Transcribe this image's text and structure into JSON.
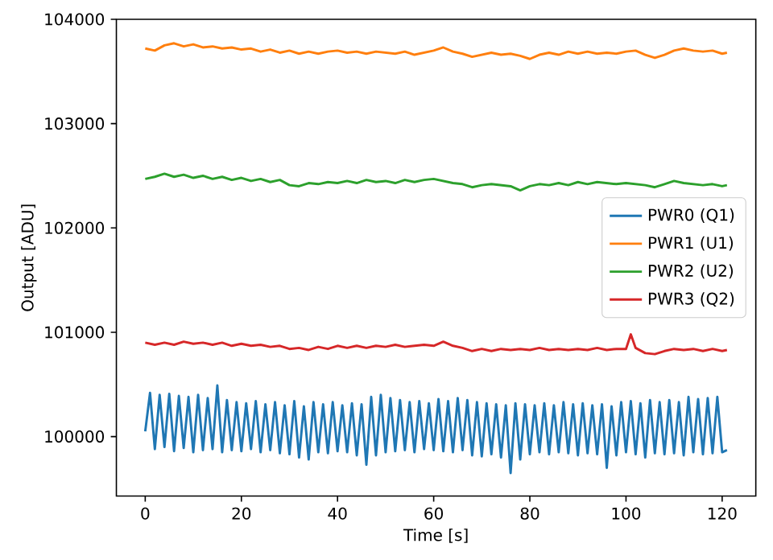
{
  "chart_data": {
    "type": "line",
    "xlabel": "Time [s]",
    "ylabel": "Output [ADU]",
    "xlim": [
      -6,
      127
    ],
    "ylim": [
      99430,
      104000
    ],
    "xticks": [
      0,
      20,
      40,
      60,
      80,
      100,
      120
    ],
    "yticks": [
      100000,
      101000,
      102000,
      103000,
      104000
    ],
    "legend": "right",
    "series": [
      {
        "name": "PWR0 (Q1)",
        "color": "#1f77b4",
        "x": [
          0,
          1,
          2,
          3,
          4,
          5,
          6,
          7,
          8,
          9,
          10,
          11,
          12,
          13,
          14,
          15,
          16,
          17,
          18,
          19,
          20,
          21,
          22,
          23,
          24,
          25,
          26,
          27,
          28,
          29,
          30,
          31,
          32,
          33,
          34,
          35,
          36,
          37,
          38,
          39,
          40,
          41,
          42,
          43,
          44,
          45,
          46,
          47,
          48,
          49,
          50,
          51,
          52,
          53,
          54,
          55,
          56,
          57,
          58,
          59,
          60,
          61,
          62,
          63,
          64,
          65,
          66,
          67,
          68,
          69,
          70,
          71,
          72,
          73,
          74,
          75,
          76,
          77,
          78,
          79,
          80,
          81,
          82,
          83,
          84,
          85,
          86,
          87,
          88,
          89,
          90,
          91,
          92,
          93,
          94,
          95,
          96,
          97,
          98,
          99,
          100,
          101,
          102,
          103,
          104,
          105,
          106,
          107,
          108,
          109,
          110,
          111,
          112,
          113,
          114,
          115,
          116,
          117,
          118,
          119,
          120,
          121
        ],
        "values": [
          100050,
          100420,
          99880,
          100400,
          99900,
          100410,
          99860,
          100390,
          99890,
          100380,
          99850,
          100400,
          99870,
          100370,
          99880,
          100490,
          99850,
          100350,
          99870,
          100330,
          99860,
          100320,
          99880,
          100340,
          99850,
          100310,
          99870,
          100330,
          99840,
          100300,
          99830,
          100340,
          99800,
          100290,
          99780,
          100330,
          99850,
          100310,
          99840,
          100330,
          99860,
          100300,
          99850,
          100320,
          99820,
          100310,
          99730,
          100380,
          99820,
          100400,
          99850,
          100370,
          99860,
          100350,
          99870,
          100330,
          99850,
          100340,
          99880,
          100320,
          99870,
          100360,
          99860,
          100340,
          99850,
          100370,
          99870,
          100350,
          99820,
          100330,
          99810,
          100320,
          99830,
          100310,
          99800,
          100300,
          99650,
          100320,
          99780,
          100310,
          99830,
          100300,
          99850,
          100320,
          99830,
          100300,
          99850,
          100330,
          99840,
          100310,
          99820,
          100320,
          99840,
          100300,
          99830,
          100310,
          99700,
          100290,
          99820,
          100330,
          99850,
          100340,
          99830,
          100320,
          99800,
          100350,
          99840,
          100330,
          99830,
          100350,
          99840,
          100330,
          99820,
          100380,
          99850,
          100360,
          99830,
          100370,
          99840,
          100380,
          99850,
          99870
        ]
      },
      {
        "name": "PWR1 (U1)",
        "color": "#ff7f0e",
        "x": [
          0,
          2,
          4,
          6,
          8,
          10,
          12,
          14,
          16,
          18,
          20,
          22,
          24,
          26,
          28,
          30,
          32,
          34,
          36,
          38,
          40,
          42,
          44,
          46,
          48,
          50,
          52,
          54,
          56,
          58,
          60,
          62,
          64,
          66,
          68,
          70,
          72,
          74,
          76,
          78,
          80,
          82,
          84,
          86,
          88,
          90,
          92,
          94,
          96,
          98,
          100,
          102,
          104,
          106,
          108,
          110,
          112,
          114,
          116,
          118,
          120,
          121
        ],
        "values": [
          103720,
          103700,
          103750,
          103770,
          103740,
          103760,
          103730,
          103740,
          103720,
          103730,
          103710,
          103720,
          103690,
          103710,
          103680,
          103700,
          103670,
          103690,
          103670,
          103690,
          103700,
          103680,
          103690,
          103670,
          103690,
          103680,
          103670,
          103690,
          103660,
          103680,
          103700,
          103730,
          103690,
          103670,
          103640,
          103660,
          103680,
          103660,
          103670,
          103650,
          103620,
          103660,
          103680,
          103660,
          103690,
          103670,
          103690,
          103670,
          103680,
          103670,
          103690,
          103700,
          103660,
          103630,
          103660,
          103700,
          103720,
          103700,
          103690,
          103700,
          103670,
          103680
        ]
      },
      {
        "name": "PWR2 (U2)",
        "color": "#2ca02c",
        "x": [
          0,
          2,
          4,
          6,
          8,
          10,
          12,
          14,
          16,
          18,
          20,
          22,
          24,
          26,
          28,
          30,
          32,
          34,
          36,
          38,
          40,
          42,
          44,
          46,
          48,
          50,
          52,
          54,
          56,
          58,
          60,
          62,
          64,
          66,
          68,
          70,
          72,
          74,
          76,
          78,
          80,
          82,
          84,
          86,
          88,
          90,
          92,
          94,
          96,
          98,
          100,
          102,
          104,
          106,
          108,
          110,
          112,
          114,
          116,
          118,
          120,
          121
        ],
        "values": [
          102470,
          102490,
          102520,
          102490,
          102510,
          102480,
          102500,
          102470,
          102490,
          102460,
          102480,
          102450,
          102470,
          102440,
          102460,
          102410,
          102400,
          102430,
          102420,
          102440,
          102430,
          102450,
          102430,
          102460,
          102440,
          102450,
          102430,
          102460,
          102440,
          102460,
          102470,
          102450,
          102430,
          102420,
          102390,
          102410,
          102420,
          102410,
          102400,
          102360,
          102400,
          102420,
          102410,
          102430,
          102410,
          102440,
          102420,
          102440,
          102430,
          102420,
          102430,
          102420,
          102410,
          102390,
          102420,
          102450,
          102430,
          102420,
          102410,
          102420,
          102400,
          102410
        ]
      },
      {
        "name": "PWR3 (Q2)",
        "color": "#d62728",
        "x": [
          0,
          2,
          4,
          6,
          8,
          10,
          12,
          14,
          16,
          18,
          20,
          22,
          24,
          26,
          28,
          30,
          32,
          34,
          36,
          38,
          40,
          42,
          44,
          46,
          48,
          50,
          52,
          54,
          56,
          58,
          60,
          62,
          64,
          66,
          68,
          70,
          72,
          74,
          76,
          78,
          80,
          82,
          84,
          86,
          88,
          90,
          92,
          94,
          96,
          98,
          100,
          101,
          102,
          104,
          106,
          108,
          110,
          112,
          114,
          116,
          118,
          120,
          121
        ],
        "values": [
          100900,
          100880,
          100900,
          100880,
          100910,
          100890,
          100900,
          100880,
          100900,
          100870,
          100890,
          100870,
          100880,
          100860,
          100870,
          100840,
          100850,
          100830,
          100860,
          100840,
          100870,
          100850,
          100870,
          100850,
          100870,
          100860,
          100880,
          100860,
          100870,
          100880,
          100870,
          100910,
          100870,
          100850,
          100820,
          100840,
          100820,
          100840,
          100830,
          100840,
          100830,
          100850,
          100830,
          100840,
          100830,
          100840,
          100830,
          100850,
          100830,
          100840,
          100840,
          100980,
          100850,
          100800,
          100790,
          100820,
          100840,
          100830,
          100840,
          100820,
          100840,
          100820,
          100830
        ]
      }
    ]
  }
}
